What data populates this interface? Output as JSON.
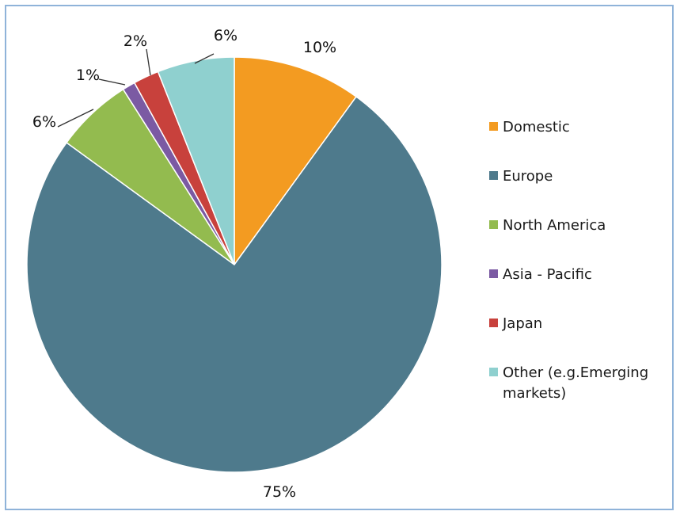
{
  "chart_data": {
    "type": "pie",
    "slices": [
      {
        "name": "Domestic",
        "value": 10,
        "label": "10%",
        "color": "#f39b21"
      },
      {
        "name": "Europe",
        "value": 75,
        "label": "75%",
        "color": "#4e7a8c"
      },
      {
        "name": "North America",
        "value": 6,
        "label": "6%",
        "color": "#93bb4f"
      },
      {
        "name": "Asia - Pacific",
        "value": 1,
        "label": "1%",
        "color": "#7b5aa3"
      },
      {
        "name": "Japan",
        "value": 2,
        "label": "2%",
        "color": "#c8413c"
      },
      {
        "name": "Other (e.g.Emerging markets)",
        "value": 6,
        "label": "6%",
        "color": "#8fd0cf"
      }
    ],
    "legend_position": "right",
    "start_angle": "12 o'clock, clockwise"
  }
}
